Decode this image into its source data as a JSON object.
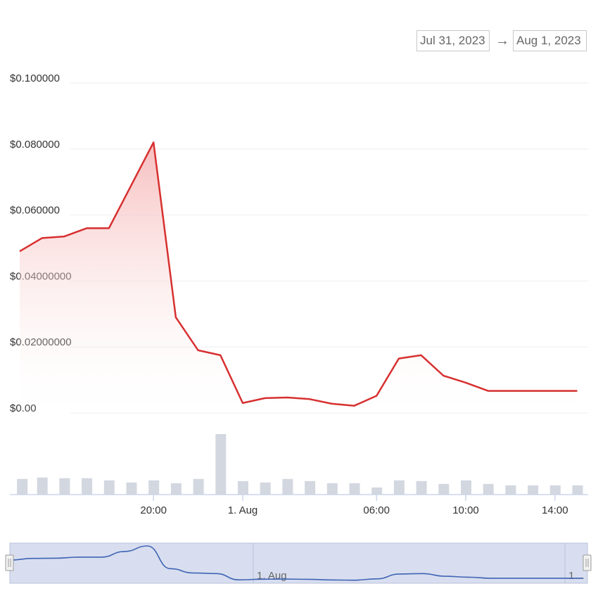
{
  "range": {
    "from": "Jul 31, 2023",
    "arrow": "→",
    "to": "Aug 1, 2023"
  },
  "colors": {
    "line": "#d73030",
    "fill": "#f8c8c8",
    "volume": "#d3d7df",
    "navigator_bg": "#d8deef",
    "navigator_line": "#3f63b5"
  },
  "chart_data": {
    "type": "line",
    "title": "",
    "xlabel": "",
    "ylabel": "",
    "ylim": [
      0,
      0.1
    ],
    "yticks": [
      {
        "value": 0.1,
        "label": "$0.100000"
      },
      {
        "value": 0.08,
        "label": "$0.080000"
      },
      {
        "value": 0.06,
        "label": "$0.060000"
      },
      {
        "value": 0.04,
        "label": "$0.04000000"
      },
      {
        "value": 0.02,
        "label": "$0.02000000"
      },
      {
        "value": 0,
        "label": "$0.00"
      }
    ],
    "xticks": [
      {
        "value": 20,
        "label": "20:00"
      },
      {
        "value": 24,
        "label": "1. Aug"
      },
      {
        "value": 30,
        "label": "06:00"
      },
      {
        "value": 34,
        "label": "10:00"
      },
      {
        "value": 38,
        "label": "14:00"
      }
    ],
    "xlim": [
      14,
      39.2
    ],
    "series": [
      {
        "x": [
          14,
          15,
          16,
          17,
          18,
          19,
          20,
          21,
          22,
          23,
          24,
          25,
          26,
          27,
          28,
          29,
          30,
          31,
          32,
          33,
          34,
          35,
          36,
          37,
          38,
          39
        ],
        "values": [
          0.049,
          0.053,
          0.0535,
          0.056,
          0.056,
          0.069,
          0.082,
          0.029,
          0.019,
          0.0175,
          0.003,
          0.0045,
          0.0047,
          0.0042,
          0.0028,
          0.0022,
          0.0052,
          0.0165,
          0.0175,
          0.0113,
          0.0092,
          0.0067,
          0.0067,
          0.0067,
          0.0067,
          0.0067
        ]
      }
    ],
    "volume": {
      "x": [
        14.1,
        15,
        16,
        17,
        18,
        19,
        20,
        21,
        22,
        23,
        24,
        25,
        26,
        27,
        28,
        29,
        30,
        31,
        32,
        33,
        34,
        35,
        36,
        37,
        38,
        39
      ],
      "values": [
        2.2,
        2.4,
        2.3,
        2.3,
        2.0,
        1.7,
        2.0,
        1.6,
        2.2,
        8.5,
        1.9,
        1.7,
        2.2,
        1.9,
        1.6,
        1.6,
        1.0,
        2.0,
        1.9,
        1.5,
        2.0,
        1.5,
        1.3,
        1.3,
        1.3,
        1.3
      ]
    },
    "navigator": {
      "labels": [
        "1. Aug",
        "1…"
      ]
    }
  }
}
